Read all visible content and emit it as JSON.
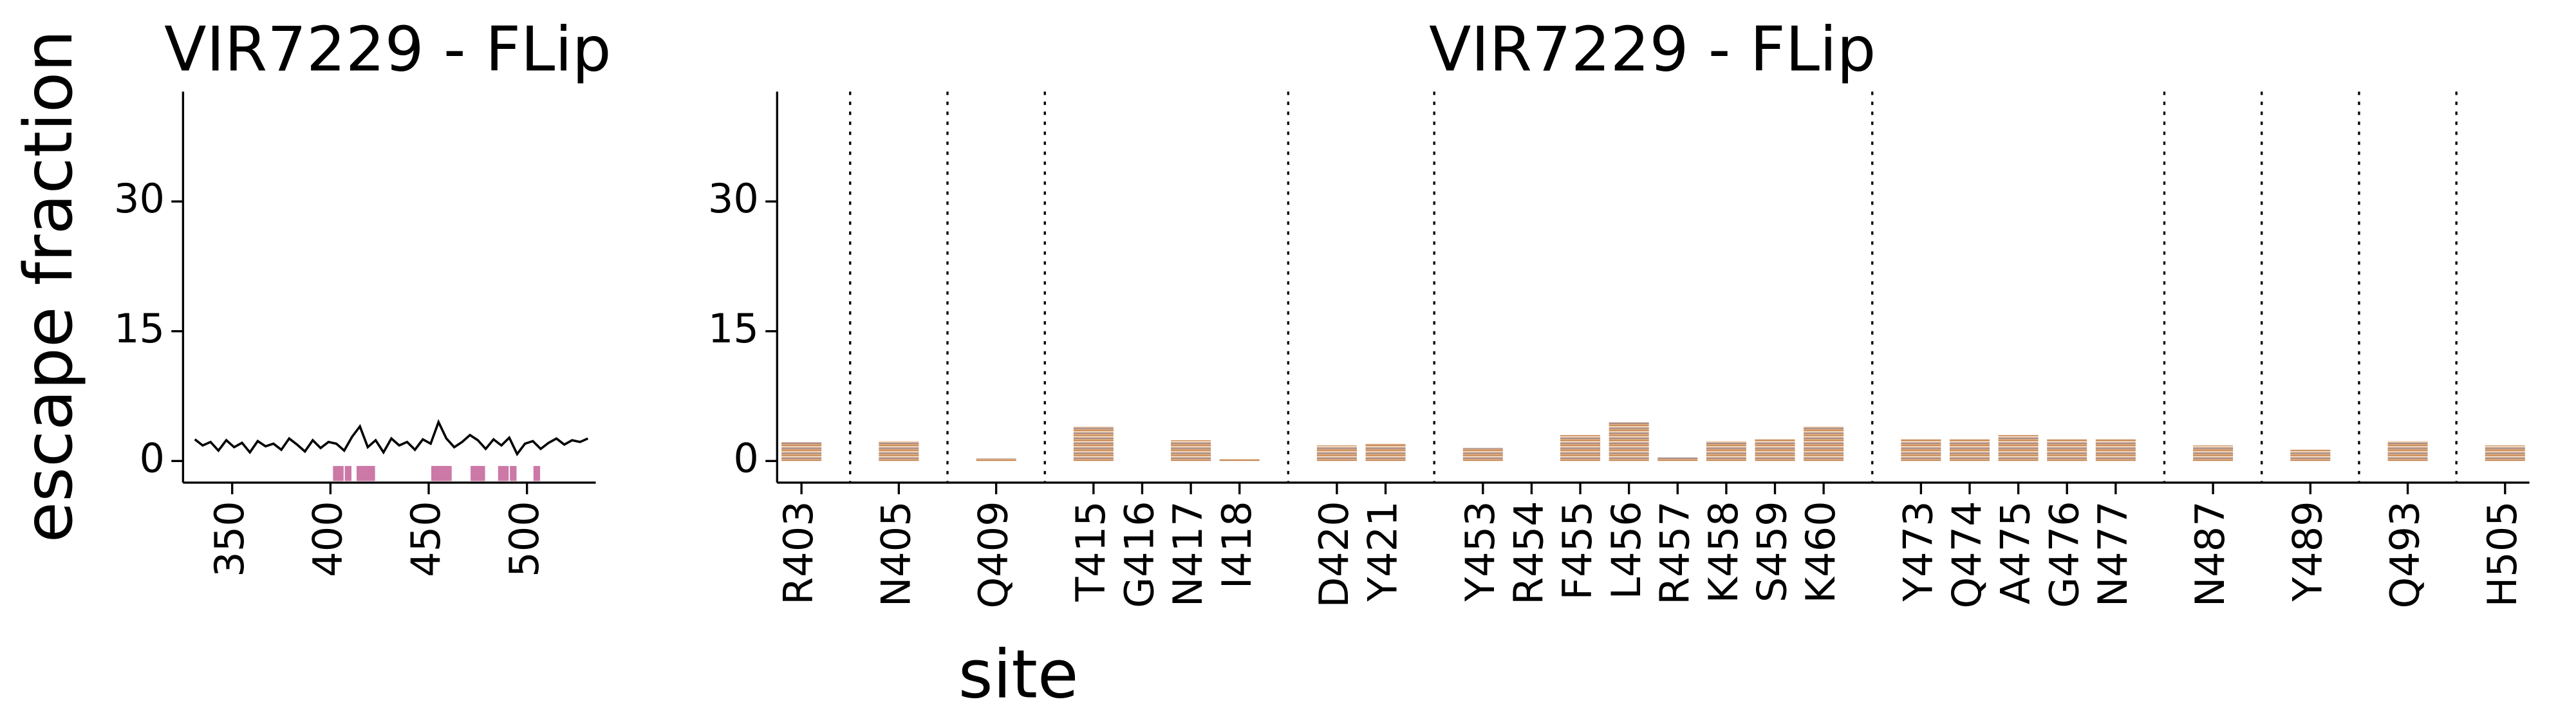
{
  "chart_data": [
    {
      "type": "line",
      "title": "VIR7229 - FLip",
      "y_label": "escape fraction",
      "x": [
        331,
        335,
        339,
        343,
        347,
        351,
        355,
        359,
        363,
        367,
        371,
        375,
        379,
        383,
        387,
        391,
        395,
        399,
        403,
        407,
        411,
        415,
        419,
        423,
        427,
        431,
        435,
        439,
        443,
        447,
        451,
        455,
        459,
        463,
        467,
        471,
        475,
        479,
        483,
        487,
        491,
        495,
        499,
        503,
        507,
        511,
        515,
        519,
        523,
        527,
        531
      ],
      "values": [
        2.5,
        1.8,
        2.2,
        1.2,
        2.4,
        1.6,
        2.1,
        1.0,
        2.3,
        1.7,
        2.0,
        1.3,
        2.6,
        1.9,
        1.1,
        2.4,
        1.5,
        2.2,
        2.0,
        1.2,
        2.8,
        4.0,
        1.6,
        2.4,
        1.0,
        2.6,
        1.8,
        2.2,
        1.3,
        2.5,
        2.0,
        4.5,
        2.6,
        1.6,
        2.2,
        3.0,
        2.4,
        1.4,
        2.5,
        1.8,
        2.7,
        0.8,
        2.0,
        2.3,
        1.4,
        2.1,
        2.6,
        1.9,
        2.4,
        2.2,
        2.6
      ],
      "color": "#000000",
      "highlight_sites": [
        403,
        405,
        409,
        415,
        416,
        417,
        418,
        420,
        421,
        453,
        454,
        455,
        456,
        457,
        458,
        459,
        460,
        473,
        474,
        475,
        476,
        477,
        487,
        489,
        493,
        505
      ],
      "highlight_color": "#cc79a7",
      "xlim": [
        325,
        535
      ],
      "xticks": [
        350,
        400,
        450,
        500
      ],
      "ylim": [
        -2.5,
        42.7
      ],
      "yticks": [
        0,
        15,
        30
      ]
    },
    {
      "type": "logo",
      "title": "VIR7229 - FLip",
      "x_label": "site",
      "categories": [
        "R403",
        null,
        "N405",
        null,
        "Q409",
        null,
        "T415",
        "G416",
        "N417",
        "I418",
        null,
        "D420",
        "Y421",
        null,
        "Y453",
        "R454",
        "F455",
        "L456",
        "R457",
        "K458",
        "S459",
        "K460",
        null,
        "Y473",
        "Q474",
        "A475",
        "G476",
        "N477",
        null,
        "N487",
        null,
        "Y489",
        null,
        "Q493",
        null,
        "H505"
      ],
      "values": [
        2.2,
        null,
        2.3,
        null,
        0.3,
        null,
        4.0,
        0,
        2.4,
        0.2,
        null,
        1.8,
        2.0,
        null,
        1.5,
        0,
        3.0,
        4.5,
        0.4,
        2.3,
        2.5,
        4.0,
        null,
        2.5,
        2.5,
        3.0,
        2.5,
        2.5,
        null,
        1.8,
        null,
        1.3,
        null,
        2.3,
        null,
        1.8
      ],
      "ylim": [
        -2.5,
        42.7
      ],
      "yticks": [
        0,
        15,
        30
      ]
    }
  ]
}
